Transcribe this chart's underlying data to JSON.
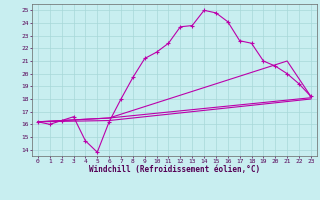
{
  "xlabel": "Windchill (Refroidissement éolien,°C)",
  "bg_color": "#c8eef0",
  "grid_color": "#a8d8d8",
  "line_color": "#bb00aa",
  "xlim": [
    -0.5,
    23.5
  ],
  "ylim": [
    13.5,
    25.5
  ],
  "xtick_labels": [
    "0",
    "1",
    "2",
    "3",
    "4",
    "5",
    "6",
    "7",
    "8",
    "9",
    "10",
    "11",
    "12",
    "13",
    "14",
    "15",
    "16",
    "17",
    "18",
    "19",
    "20",
    "21",
    "22",
    "23"
  ],
  "ytick_labels": [
    "14",
    "15",
    "16",
    "17",
    "18",
    "19",
    "20",
    "21",
    "22",
    "23",
    "24",
    "25"
  ],
  "line1_x": [
    0,
    1,
    2,
    3,
    4,
    5,
    6,
    7,
    8,
    9,
    10,
    11,
    12,
    13,
    14,
    15,
    16,
    17,
    18,
    19,
    20,
    21,
    22,
    23
  ],
  "line1_y": [
    16.2,
    16.0,
    16.3,
    16.6,
    14.7,
    13.8,
    16.2,
    18.0,
    19.7,
    21.2,
    21.7,
    22.4,
    23.7,
    23.8,
    25.0,
    24.8,
    24.1,
    22.6,
    22.4,
    21.0,
    20.6,
    20.0,
    19.2,
    18.2
  ],
  "line2_x": [
    0,
    6,
    23
  ],
  "line2_y": [
    16.2,
    16.3,
    18.0
  ],
  "line3_x": [
    0,
    6,
    23
  ],
  "line3_y": [
    16.2,
    16.5,
    18.1
  ],
  "line4_x": [
    0,
    6,
    21,
    23
  ],
  "line4_y": [
    16.2,
    16.5,
    21.0,
    18.2
  ]
}
